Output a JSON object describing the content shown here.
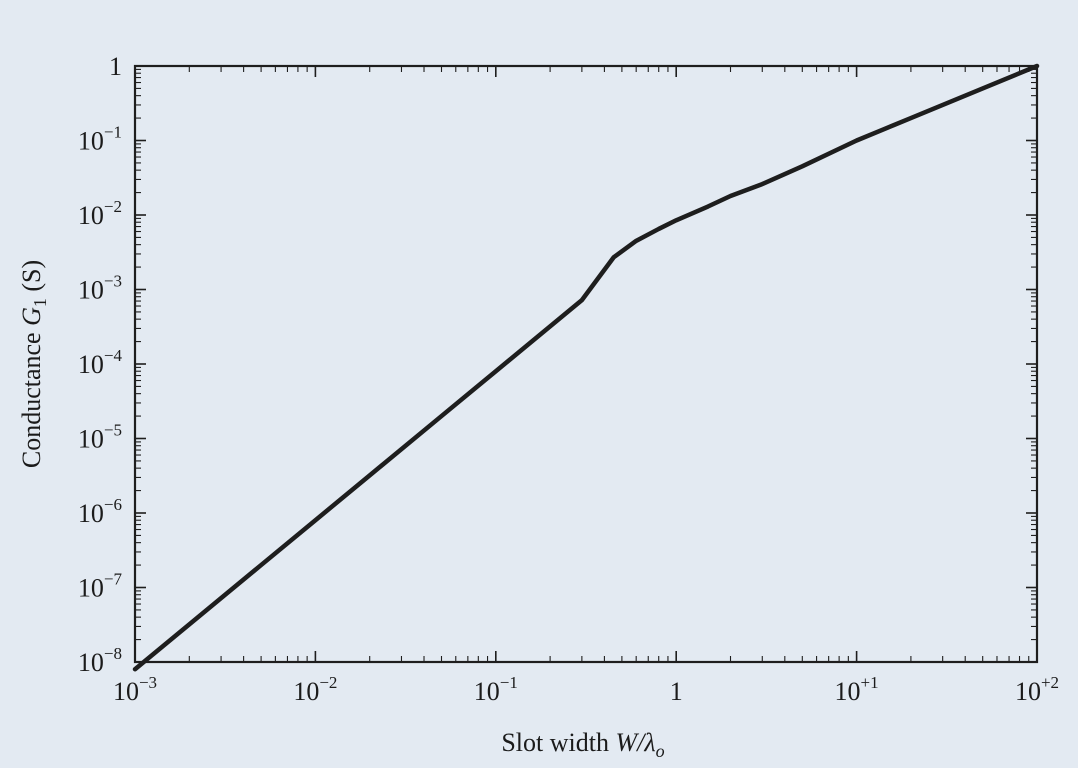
{
  "chart_data": {
    "type": "line",
    "xlabel": {
      "prefix": "Slot width ",
      "var": "W/λ",
      "sub": "o"
    },
    "ylabel": {
      "prefix": "Conductance ",
      "var": "G",
      "sub": "1",
      "suffix": " (S)"
    },
    "x_scale": "log",
    "y_scale": "log",
    "xlim": [
      0.001,
      100
    ],
    "ylim": [
      1e-08,
      1
    ],
    "x_ticks": [
      {
        "value": 0.001,
        "base": "10",
        "exp": "−3"
      },
      {
        "value": 0.01,
        "base": "10",
        "exp": "−2"
      },
      {
        "value": 0.1,
        "base": "10",
        "exp": "−1"
      },
      {
        "value": 1,
        "base": "1",
        "exp": ""
      },
      {
        "value": 10,
        "base": "10",
        "exp": "+1"
      },
      {
        "value": 100,
        "base": "10",
        "exp": "+2"
      }
    ],
    "y_ticks": [
      {
        "value": 1e-08,
        "base": "10",
        "exp": "−8"
      },
      {
        "value": 1e-07,
        "base": "10",
        "exp": "−7"
      },
      {
        "value": 1e-06,
        "base": "10",
        "exp": "−6"
      },
      {
        "value": 1e-05,
        "base": "10",
        "exp": "−5"
      },
      {
        "value": 0.0001,
        "base": "10",
        "exp": "−4"
      },
      {
        "value": 0.001,
        "base": "10",
        "exp": "−3"
      },
      {
        "value": 0.01,
        "base": "10",
        "exp": "−2"
      },
      {
        "value": 0.1,
        "base": "10",
        "exp": "−1"
      },
      {
        "value": 1,
        "base": "1",
        "exp": ""
      }
    ],
    "grid": false,
    "series": [
      {
        "color": "#1e1e1e",
        "x": [
          0.001,
          0.002,
          0.005,
          0.01,
          0.02,
          0.05,
          0.1,
          0.2,
          0.3,
          0.45,
          0.6,
          0.8,
          1,
          1.5,
          2,
          3,
          5,
          10,
          20,
          50,
          100
        ],
        "y": [
          8e-09,
          3.2e-08,
          2e-07,
          8e-07,
          3.2e-06,
          2e-05,
          8e-05,
          0.00032,
          0.00072,
          0.0027,
          0.0045,
          0.0065,
          0.0085,
          0.013,
          0.018,
          0.026,
          0.045,
          0.1,
          0.2,
          0.5,
          1
        ]
      }
    ]
  }
}
